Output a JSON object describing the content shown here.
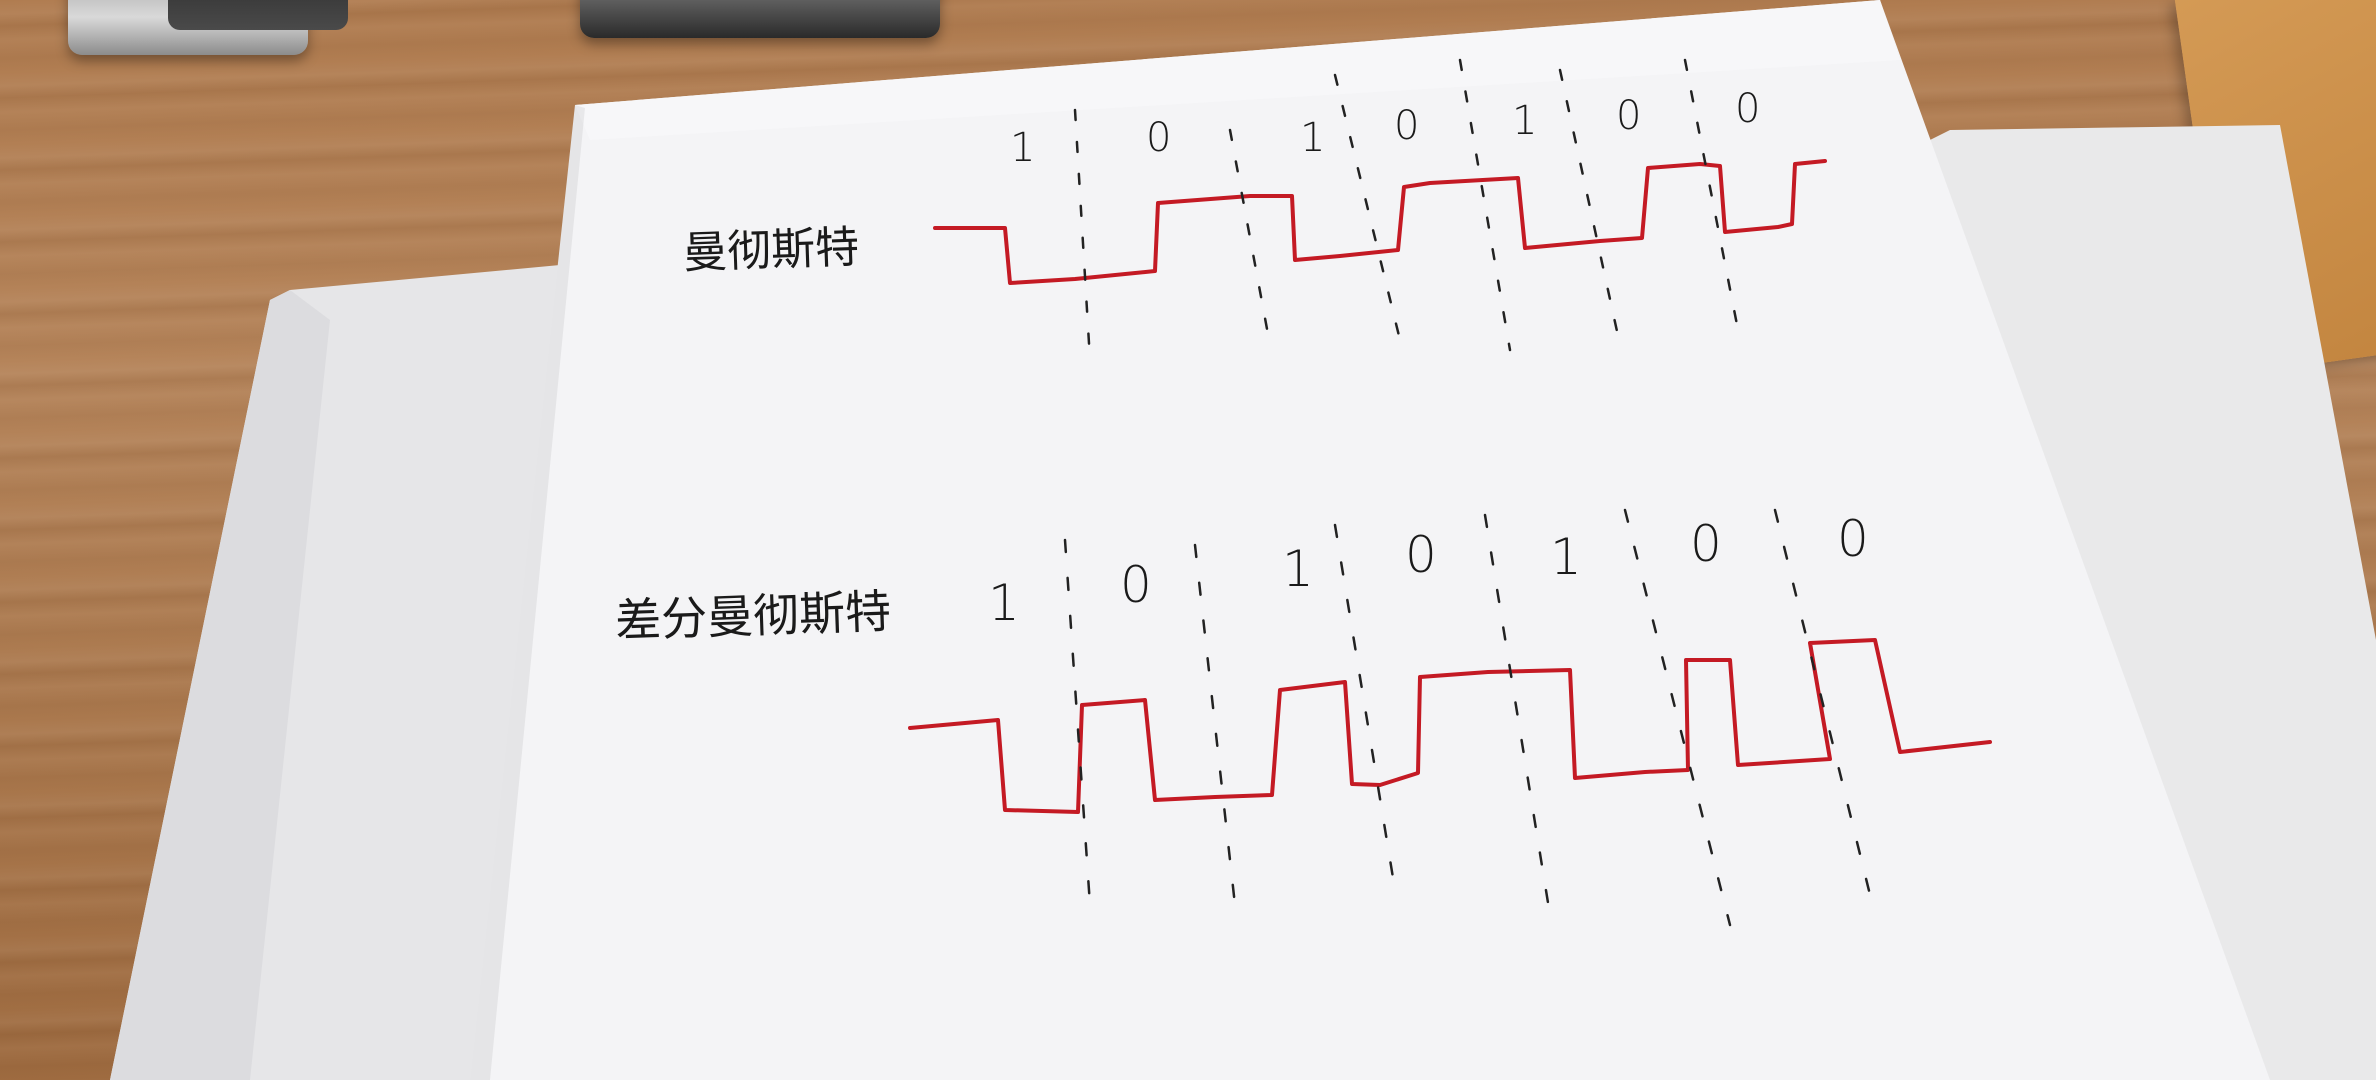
{
  "diagrams": [
    {
      "label": "曼彻斯特",
      "bits": [
        "1",
        "0",
        "1",
        "0",
        "1",
        "0",
        "0"
      ],
      "encoding": "manchester",
      "signal_color": "#c41a24"
    },
    {
      "label": "差分曼彻斯特",
      "bits": [
        "1",
        "0",
        "1",
        "0",
        "1",
        "0",
        "0"
      ],
      "encoding": "differential-manchester",
      "signal_color": "#c41a24"
    }
  ]
}
